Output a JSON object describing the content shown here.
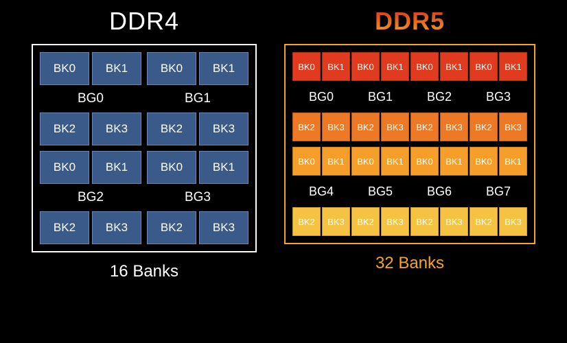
{
  "background_color": "#000000",
  "ddr4": {
    "title": "DDR4",
    "title_color": "#ffffff",
    "frame_border_color": "#ffffff",
    "bank_bg": "#3a5a8a",
    "bank_border": "#6a88b5",
    "bank_text_color": "#ffffff",
    "caption": "16 Banks",
    "caption_color": "#ffffff",
    "groups": [
      {
        "label": "BG0",
        "banks_top": [
          "BK0",
          "BK1"
        ],
        "banks_bottom": [
          "BK2",
          "BK3"
        ]
      },
      {
        "label": "BG1",
        "banks_top": [
          "BK0",
          "BK1"
        ],
        "banks_bottom": [
          "BK2",
          "BK3"
        ]
      },
      {
        "label": "BG2",
        "banks_top": [
          "BK0",
          "BK1"
        ],
        "banks_bottom": [
          "BK2",
          "BK3"
        ]
      },
      {
        "label": "BG3",
        "banks_top": [
          "BK0",
          "BK1"
        ],
        "banks_bottom": [
          "BK2",
          "BK3"
        ]
      }
    ]
  },
  "ddr5": {
    "title": "DDR5",
    "title_gradient_top": "#d82a1e",
    "title_gradient_bottom": "#f5a623",
    "frame_border_color": "#f5a623",
    "caption": "32 Banks",
    "caption_color": "#f5a623",
    "row_colors": [
      "#e03a1f",
      "#ed7825",
      "#f59e29",
      "#f5c242"
    ],
    "group_labels_top": [
      "BG0",
      "BG1",
      "BG2",
      "BG3"
    ],
    "group_labels_bottom": [
      "BG4",
      "BG5",
      "BG6",
      "BG7"
    ],
    "bank_pattern_top": [
      "BK0",
      "BK1",
      "BK0",
      "BK1",
      "BK0",
      "BK1",
      "BK0",
      "BK1"
    ],
    "bank_pattern_bottom": [
      "BK2",
      "BK3",
      "BK2",
      "BK3",
      "BK2",
      "BK3",
      "BK2",
      "BK3"
    ]
  }
}
